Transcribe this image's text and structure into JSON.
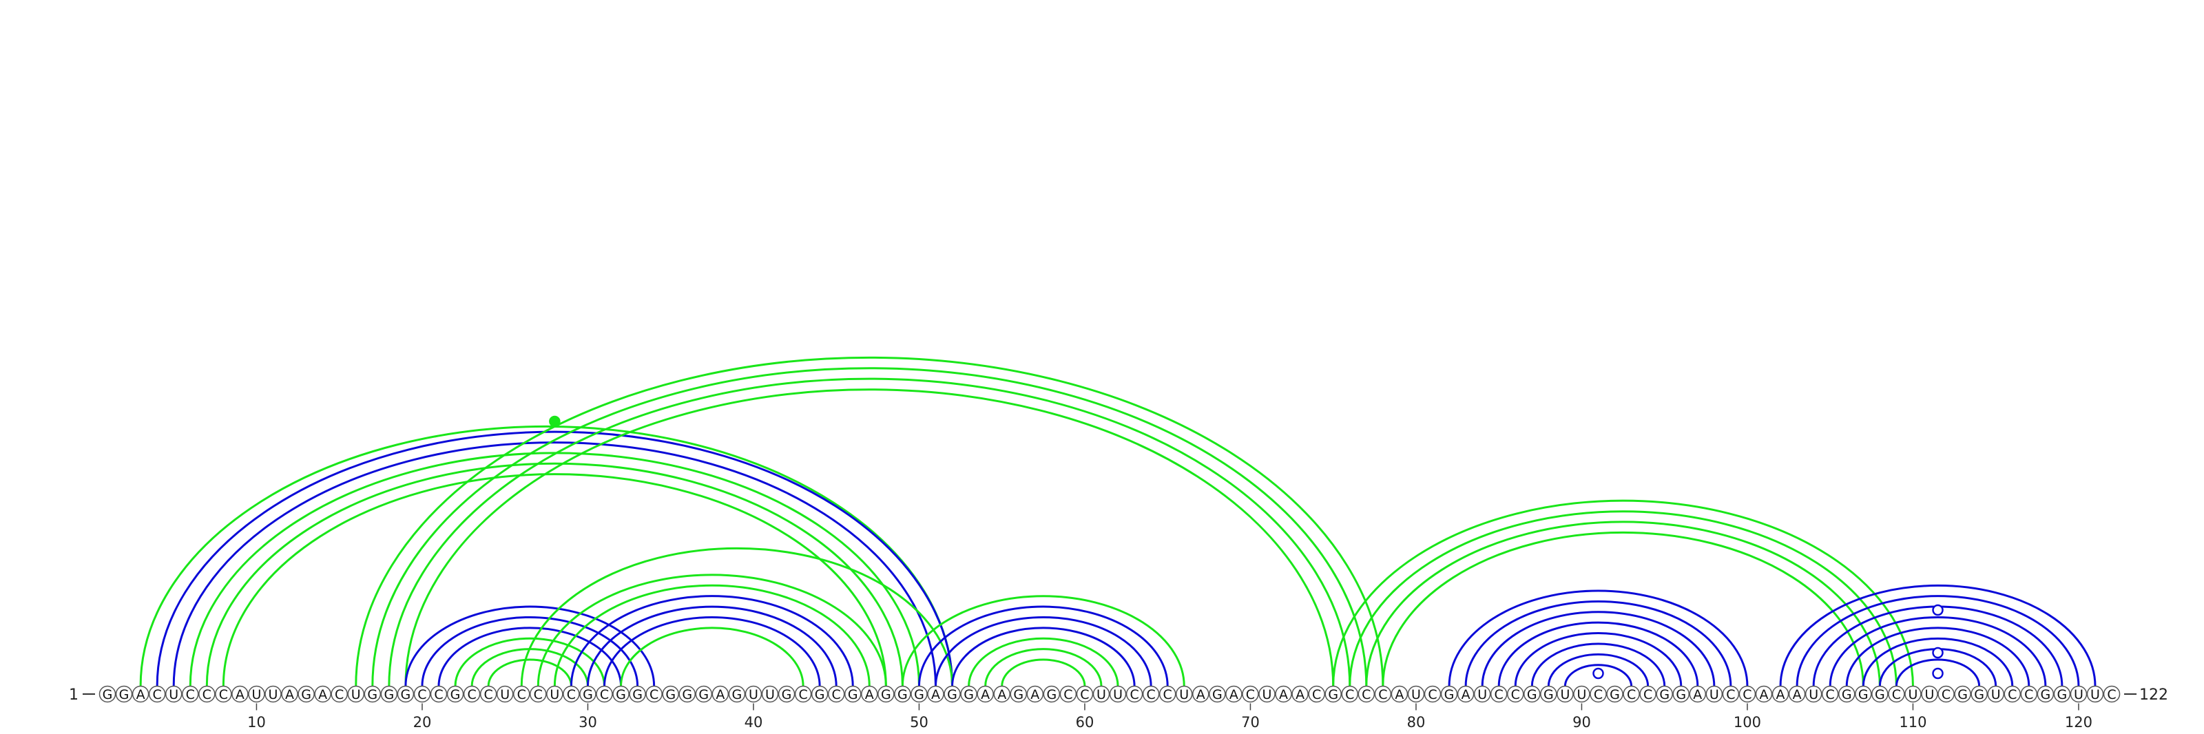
{
  "diagram": {
    "start_label": "1",
    "end_label": "122",
    "sequence": "GGACUCCCAUUAGACUGGGCCGCCUCCUCGCGGCGGGAGUUGCGCGAGGGAGGAAGAGCCUUCCCUAGACUAACGCCCAUCGAUCCGGUUCGCCGGAUCCAAAUCGGGCUUCGGUCCGGUUC",
    "ticks": [
      "10",
      "20",
      "30",
      "40",
      "50",
      "60",
      "70",
      "80",
      "90",
      "100",
      "110",
      "120"
    ],
    "colors": {
      "blue": "#0a0ad8",
      "green": "#19e619",
      "line": "#333333",
      "background": "#ffffff"
    },
    "markers": [
      {
        "pos": 28.0,
        "height": 0.205,
        "style": "filled",
        "color": "green"
      },
      {
        "pos": 91.0,
        "height": 0.0,
        "style": "open",
        "color": "blue"
      },
      {
        "pos": 111.5,
        "height": 0.0,
        "style": "open",
        "color": "blue"
      },
      {
        "pos": 111.5,
        "height": 0.0,
        "style": "open",
        "color": "blue"
      },
      {
        "pos": 111.5,
        "height": 0.0,
        "style": "open",
        "color": "blue"
      }
    ],
    "arcs": [
      {
        "i": 3,
        "j": 52,
        "color": "green",
        "w": 1.5
      },
      {
        "i": 4,
        "j": 52,
        "color": "blue",
        "w": 1.5
      },
      {
        "i": 5,
        "j": 51,
        "color": "blue",
        "w": 1.5
      },
      {
        "i": 6,
        "j": 50,
        "color": "green",
        "w": 1.5
      },
      {
        "i": 7,
        "j": 49,
        "color": "green",
        "w": 1.5
      },
      {
        "i": 8,
        "j": 48,
        "color": "green",
        "w": 1.5
      },
      {
        "i": 16,
        "j": 78,
        "color": "green",
        "w": 1.5
      },
      {
        "i": 17,
        "j": 77,
        "color": "green",
        "w": 1.5
      },
      {
        "i": 18,
        "j": 76,
        "color": "green",
        "w": 1.5
      },
      {
        "i": 19,
        "j": 75,
        "color": "green",
        "w": 1.5
      },
      {
        "i": 19,
        "j": 34,
        "color": "blue",
        "w": 1.5
      },
      {
        "i": 20,
        "j": 33,
        "color": "blue",
        "w": 1.5
      },
      {
        "i": 21,
        "j": 32,
        "color": "blue",
        "w": 1.5
      },
      {
        "i": 22,
        "j": 31,
        "color": "green",
        "w": 1.5
      },
      {
        "i": 23,
        "j": 30,
        "color": "green",
        "w": 1.5
      },
      {
        "i": 24,
        "j": 29,
        "color": "green",
        "w": 1.5
      },
      {
        "i": 26,
        "j": 52,
        "color": "green",
        "w": 1.5
      },
      {
        "i": 27,
        "j": 48,
        "color": "green",
        "w": 1.5
      },
      {
        "i": 28,
        "j": 47,
        "color": "green",
        "w": 1.5
      },
      {
        "i": 29,
        "j": 46,
        "color": "blue",
        "w": 1.5
      },
      {
        "i": 30,
        "j": 45,
        "color": "blue",
        "w": 1.5
      },
      {
        "i": 31,
        "j": 44,
        "color": "blue",
        "w": 1.5
      },
      {
        "i": 32,
        "j": 43,
        "color": "green",
        "w": 1.5
      },
      {
        "i": 49,
        "j": 66,
        "color": "green",
        "w": 1.5
      },
      {
        "i": 50,
        "j": 65,
        "color": "blue",
        "w": 1.5
      },
      {
        "i": 51,
        "j": 64,
        "color": "blue",
        "w": 1.5
      },
      {
        "i": 52,
        "j": 63,
        "color": "blue",
        "w": 1.5
      },
      {
        "i": 53,
        "j": 62,
        "color": "green",
        "w": 1.5
      },
      {
        "i": 54,
        "j": 61,
        "color": "green",
        "w": 1.5
      },
      {
        "i": 55,
        "j": 60,
        "color": "green",
        "w": 1.5
      },
      {
        "i": 75,
        "j": 110,
        "color": "green",
        "w": 1.5
      },
      {
        "i": 76,
        "j": 109,
        "color": "green",
        "w": 1.5
      },
      {
        "i": 77,
        "j": 108,
        "color": "green",
        "w": 1.5
      },
      {
        "i": 78,
        "j": 107,
        "color": "green",
        "w": 1.5
      },
      {
        "i": 82,
        "j": 100,
        "color": "blue",
        "w": 1.5
      },
      {
        "i": 83,
        "j": 99,
        "color": "blue",
        "w": 1.5
      },
      {
        "i": 84,
        "j": 98,
        "color": "blue",
        "w": 1.5
      },
      {
        "i": 85,
        "j": 97,
        "color": "blue",
        "w": 1.5
      },
      {
        "i": 86,
        "j": 96,
        "color": "blue",
        "w": 1.5
      },
      {
        "i": 87,
        "j": 95,
        "color": "blue",
        "w": 1.5
      },
      {
        "i": 88,
        "j": 94,
        "color": "blue",
        "w": 1.5
      },
      {
        "i": 89,
        "j": 93,
        "color": "blue",
        "w": 1.5
      },
      {
        "i": 102,
        "j": 121,
        "color": "blue",
        "w": 1.5
      },
      {
        "i": 103,
        "j": 120,
        "color": "blue",
        "w": 1.5
      },
      {
        "i": 104,
        "j": 119,
        "color": "blue",
        "w": 1.5
      },
      {
        "i": 105,
        "j": 118,
        "color": "blue",
        "w": 1.5
      },
      {
        "i": 106,
        "j": 117,
        "color": "blue",
        "w": 1.5
      },
      {
        "i": 107,
        "j": 116,
        "color": "blue",
        "w": 1.5
      },
      {
        "i": 108,
        "j": 115,
        "color": "blue",
        "w": 1.5
      },
      {
        "i": 109,
        "j": 114,
        "color": "blue",
        "w": 1.5
      }
    ]
  }
}
